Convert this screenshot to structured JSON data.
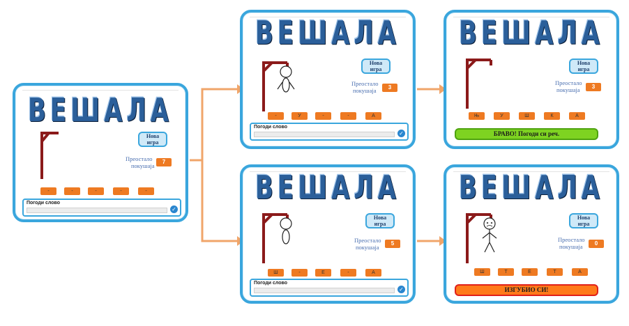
{
  "title": "ВЕШАЛА",
  "labels": {
    "attempts_line1": "Преостало",
    "attempts_line2": "покушаја",
    "guess_label": "Погоди слово",
    "btn_new_line1": "Нова",
    "btn_new_line2": "игра",
    "btn_new_game_line1": "Нова",
    "btn_new_game_line2": "игра",
    "btn_new_alt_line1": "Нова",
    "btn_new_alt_line2": "игра"
  },
  "panels": {
    "start": {
      "attempts": "7",
      "tiles": [
        "-",
        "-",
        "-",
        "-",
        "-"
      ]
    },
    "top_mid": {
      "attempts": "3",
      "tiles": [
        "-",
        "У",
        "-",
        "-",
        "А"
      ]
    },
    "top_right": {
      "attempts": "3",
      "tiles": [
        "Њ",
        "У",
        "Ш",
        "К",
        "А"
      ],
      "banner": "БРАВО! Погоди си реч."
    },
    "bottom_mid": {
      "attempts": "5",
      "tiles": [
        "Ш",
        "-",
        "Е",
        "-",
        "А"
      ]
    },
    "bottom_right": {
      "attempts": "0",
      "tiles": [
        "Ш",
        "Т",
        "Е",
        "Т",
        "А"
      ],
      "banner": "ИЗГУБИО СИ!"
    }
  },
  "colors": {
    "border": "#3aa6dd",
    "accent": "#ee7a22",
    "win": "#7ed321",
    "lose": "#ff7a1a",
    "gallows": "#8b1a1a"
  },
  "icons": {
    "arrow": "orange-arrow-icon",
    "check": "check-icon"
  }
}
